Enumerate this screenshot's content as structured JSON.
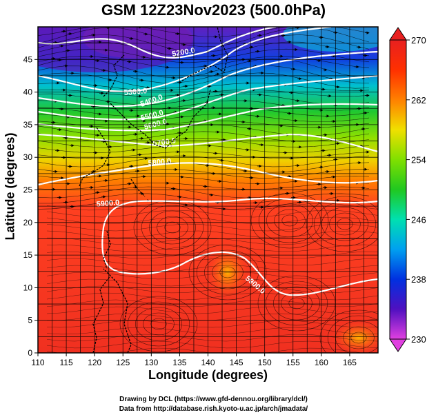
{
  "title": "GSM 12Z23Nov2023 (500.0hPa)",
  "xaxis": {
    "label": "Longitude (degrees)",
    "range": [
      110,
      170
    ],
    "ticks": [
      110,
      115,
      120,
      125,
      130,
      135,
      140,
      145,
      150,
      155,
      160,
      165
    ]
  },
  "yaxis": {
    "label": "Latitude  (degrees)",
    "range": [
      0,
      50
    ],
    "ticks": [
      0,
      5,
      10,
      15,
      20,
      25,
      30,
      35,
      40,
      45
    ]
  },
  "colorbar": {
    "range": [
      230,
      270
    ],
    "ticks": [
      230,
      238,
      246,
      254,
      262,
      270
    ],
    "colors": [
      "#e040e0",
      "#5010c0",
      "#0030e0",
      "#00a0f0",
      "#00e0b0",
      "#20c820",
      "#80e000",
      "#f0e000",
      "#ff8000",
      "#ff3000",
      "#e82020"
    ]
  },
  "contours": [
    {
      "label": "5200.0"
    },
    {
      "label": "5300.0"
    },
    {
      "label": "5400.0"
    },
    {
      "label": "5500.0"
    },
    {
      "label": "5600.0"
    },
    {
      "label": "5700.0"
    },
    {
      "label": "5800.0"
    },
    {
      "label": "5900.0"
    },
    {
      "label": "5900.0"
    }
  ],
  "credits": {
    "line1": "Drawing by DCL (https://www.gfd-dennou.org/library/dcl/)",
    "line2": "Data from http://database.rish.kyoto-u.ac.jp/arch/jmadata/"
  }
}
